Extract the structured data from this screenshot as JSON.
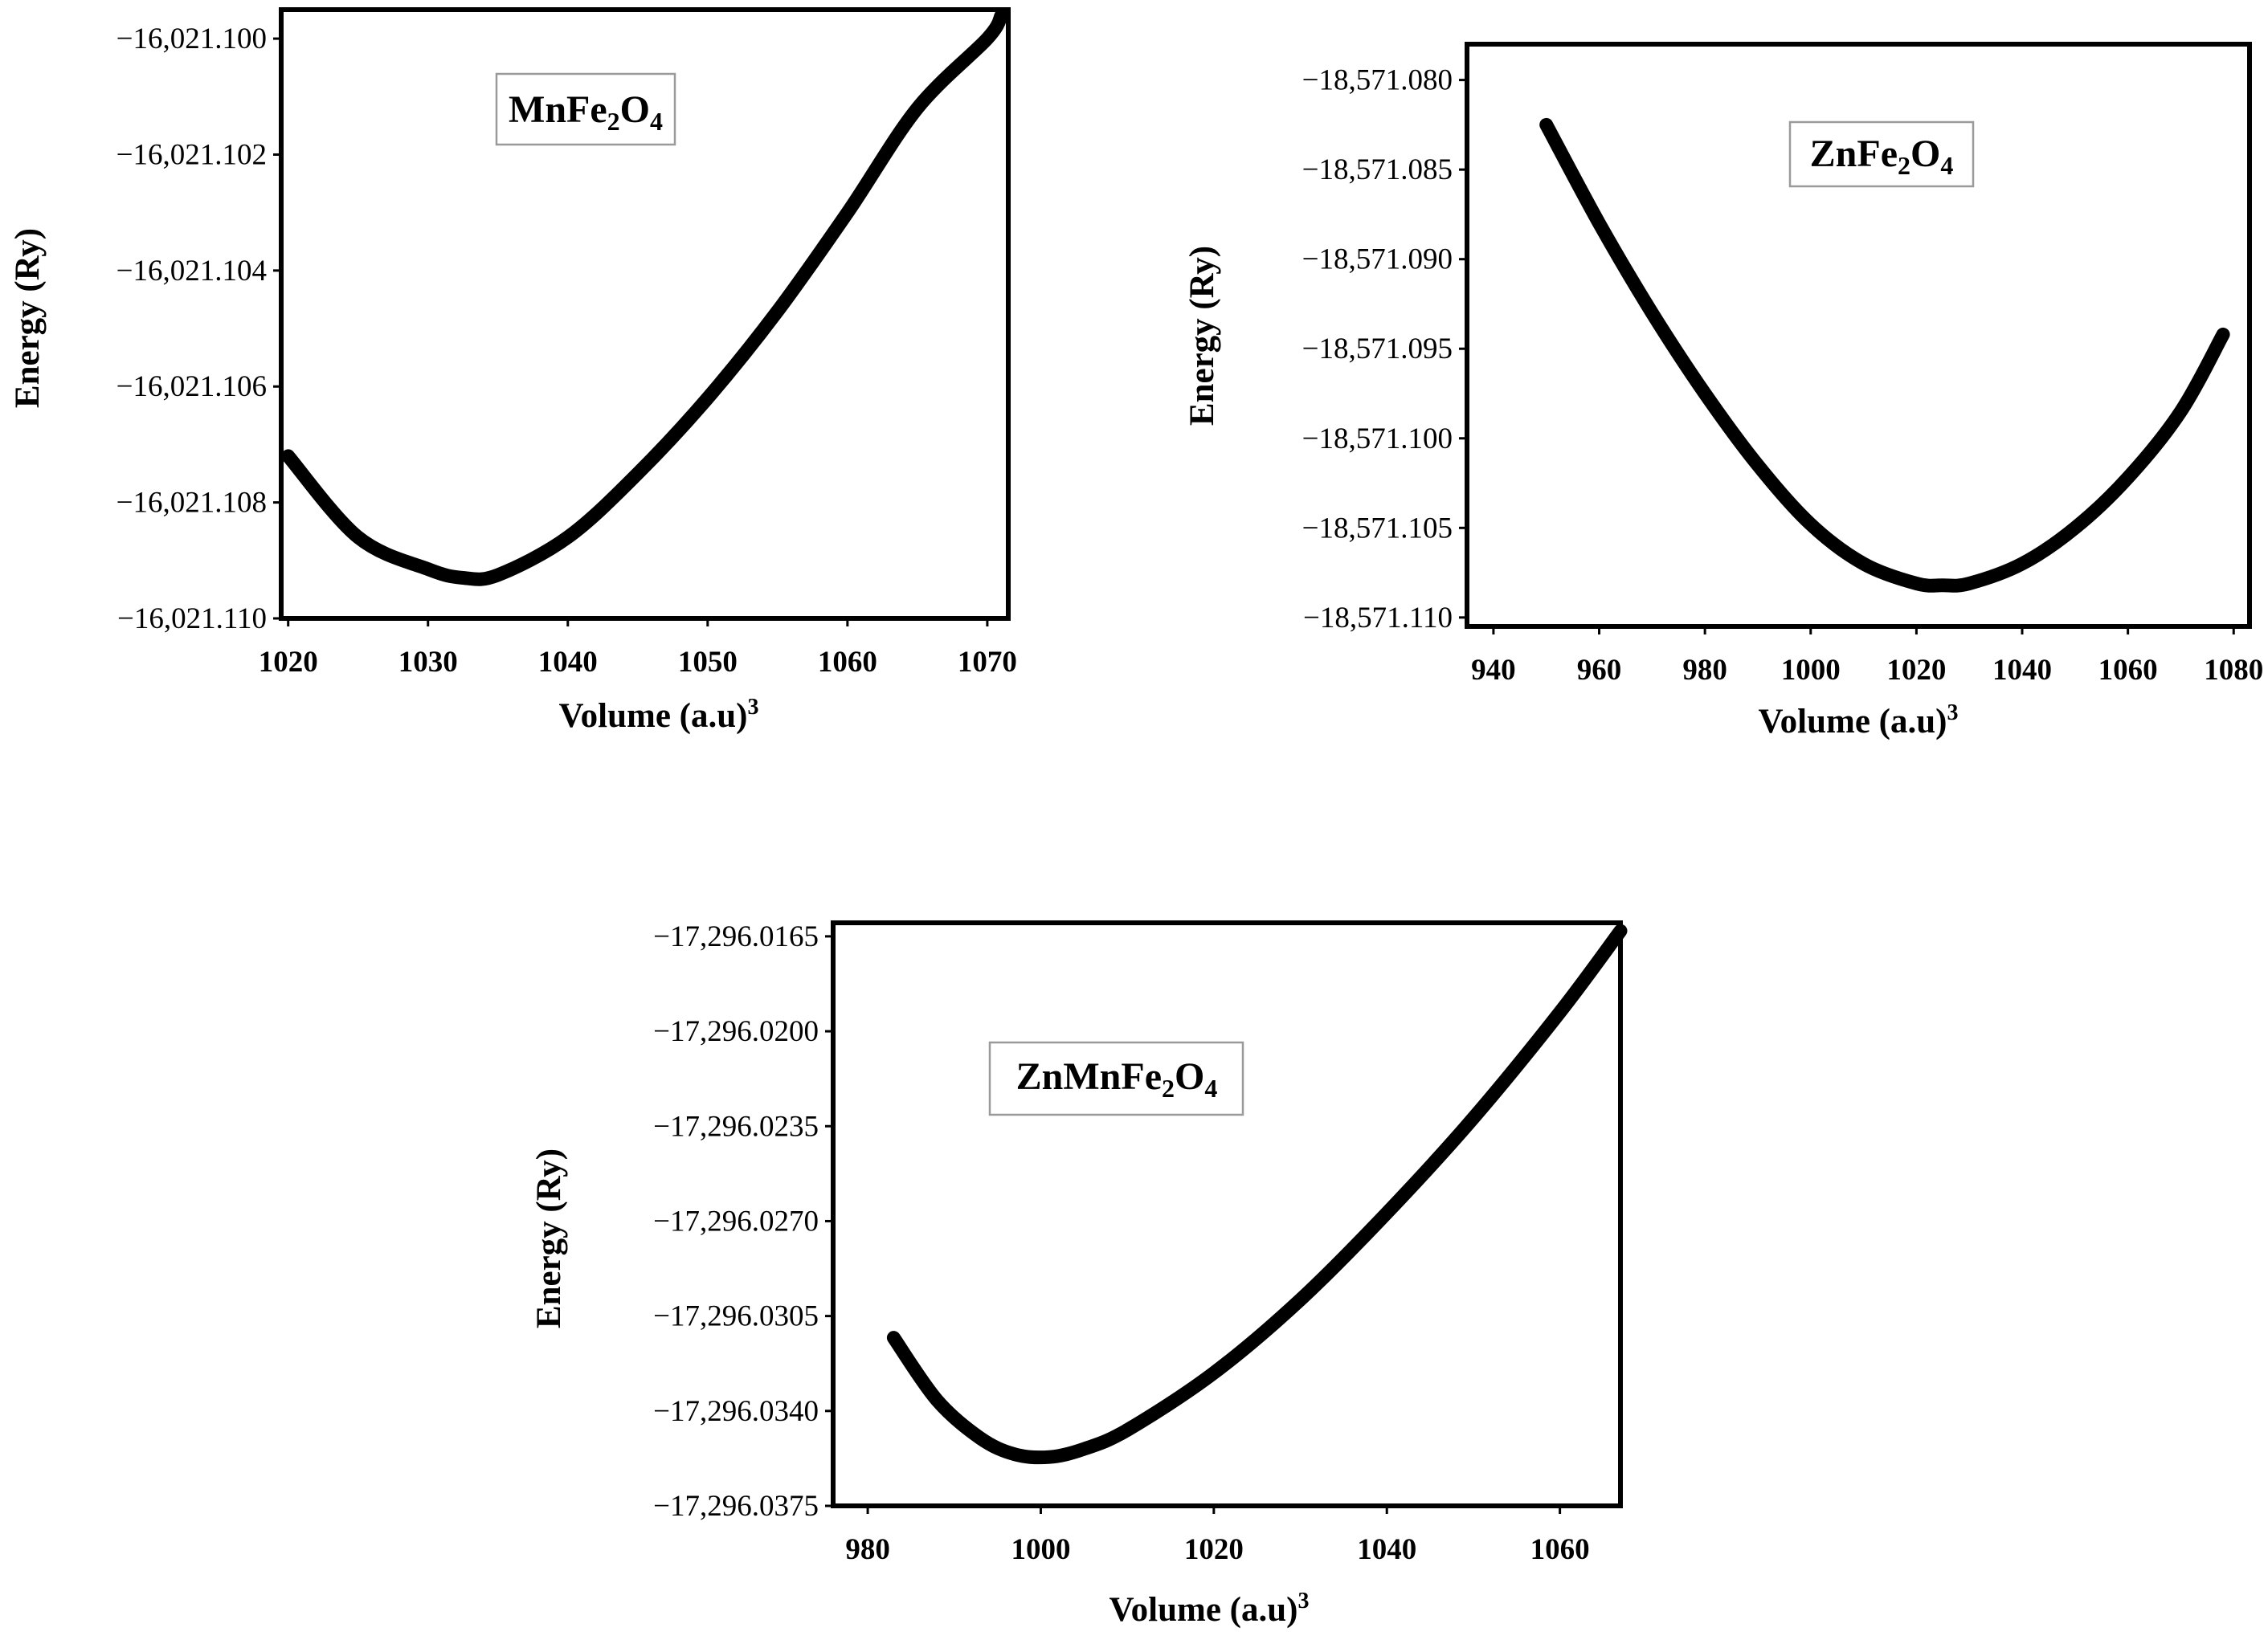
{
  "chart_data": [
    {
      "type": "line",
      "id": "mnfe2o4",
      "legend": {
        "base": "MnFe",
        "sub1": "2",
        "mid": "O",
        "sub2": "4"
      },
      "xlabel": "Volume (a.u)",
      "xlabel_sup": "3",
      "ylabel": "Energy (Ry)",
      "xlim": [
        1019.5,
        1071.5
      ],
      "ylim": [
        -16021.11,
        -16021.0995
      ],
      "xticks": [
        1020,
        1030,
        1040,
        1050,
        1060,
        1070
      ],
      "xtick_labels": [
        "1020",
        "1030",
        "1040",
        "1050",
        "1060",
        "1070"
      ],
      "yticks": [
        -16021.1,
        -16021.102,
        -16021.104,
        -16021.106,
        -16021.108,
        -16021.11
      ],
      "ytick_labels": [
        "−16,021.100",
        "−16,021.102",
        "−16,021.104",
        "−16,021.106",
        "−16,021.108",
        "−16,021.110"
      ],
      "series": [
        {
          "name": "MnFe2O4",
          "x": [
            1020,
            1025,
            1030,
            1032.5,
            1035,
            1040,
            1045,
            1050,
            1055,
            1060,
            1065,
            1070,
            1071
          ],
          "y": [
            -16021.1072,
            -16021.1086,
            -16021.10915,
            -16021.1093,
            -16021.10925,
            -16021.1086,
            -16021.1075,
            -16021.1062,
            -16021.1047,
            -16021.103,
            -16021.1012,
            -16021.1,
            -16021.0996
          ]
        }
      ]
    },
    {
      "type": "line",
      "id": "znfe2o4",
      "legend": {
        "base": "ZnFe",
        "sub1": "2",
        "mid": "O",
        "sub2": "4"
      },
      "xlabel": "Volume (a.u)",
      "xlabel_sup": "3",
      "ylabel": "Energy (Ry)",
      "xlim": [
        935,
        1083
      ],
      "ylim": [
        -18571.1105,
        -18571.078
      ],
      "xticks": [
        940,
        960,
        980,
        1000,
        1020,
        1040,
        1060,
        1080
      ],
      "xtick_labels": [
        "940",
        "960",
        "980",
        "1000",
        "1020",
        "1040",
        "1060",
        "1080"
      ],
      "yticks": [
        -18571.08,
        -18571.085,
        -18571.09,
        -18571.095,
        -18571.1,
        -18571.105,
        -18571.11
      ],
      "ytick_labels": [
        "−18,571.080",
        "−18,571.085",
        "−18,571.090",
        "−18,571.095",
        "−18,571.100",
        "−18,571.105",
        "−18,571.110"
      ],
      "series": [
        {
          "name": "ZnFe2O4",
          "x": [
            950,
            960,
            970,
            980,
            990,
            1000,
            1010,
            1020,
            1025,
            1030,
            1040,
            1050,
            1060,
            1070,
            1078
          ],
          "y": [
            -18571.0825,
            -18571.088,
            -18571.093,
            -18571.0975,
            -18571.1015,
            -18571.1048,
            -18571.107,
            -18571.1081,
            -18571.1082,
            -18571.1081,
            -18571.107,
            -18571.105,
            -18571.1022,
            -18571.0985,
            -18571.0942
          ]
        }
      ]
    },
    {
      "type": "line",
      "id": "znmnfe2o4",
      "legend": {
        "base": "ZnMnFe",
        "sub1": "2",
        "mid": "O",
        "sub2": "4"
      },
      "xlabel": "Volume (a.u)",
      "xlabel_sup": "3",
      "ylabel": "Energy (Ry)",
      "xlim": [
        976,
        1067
      ],
      "ylim": [
        -17296.0375,
        -17296.016
      ],
      "xticks": [
        980,
        1000,
        1020,
        1040,
        1060
      ],
      "xtick_labels": [
        "980",
        "1000",
        "1020",
        "1040",
        "1060"
      ],
      "yticks": [
        -17296.0165,
        -17296.02,
        -17296.0235,
        -17296.027,
        -17296.0305,
        -17296.034,
        -17296.0375
      ],
      "ytick_labels": [
        "−17,296.0165",
        "−17,296.0200",
        "−17,296.0235",
        "−17,296.0270",
        "−17,296.0305",
        "−17,296.0340",
        "−17,296.0375"
      ],
      "series": [
        {
          "name": "ZnMnFe2O4",
          "x": [
            983,
            988,
            993,
            997,
            1001,
            1005,
            1010,
            1020,
            1030,
            1040,
            1050,
            1060,
            1067
          ],
          "y": [
            -17296.0313,
            -17296.0336,
            -17296.035,
            -17296.0356,
            -17296.0357,
            -17296.0354,
            -17296.0347,
            -17296.0326,
            -17296.0299,
            -17296.0267,
            -17296.0232,
            -17296.0193,
            -17296.0163
          ]
        }
      ]
    }
  ]
}
